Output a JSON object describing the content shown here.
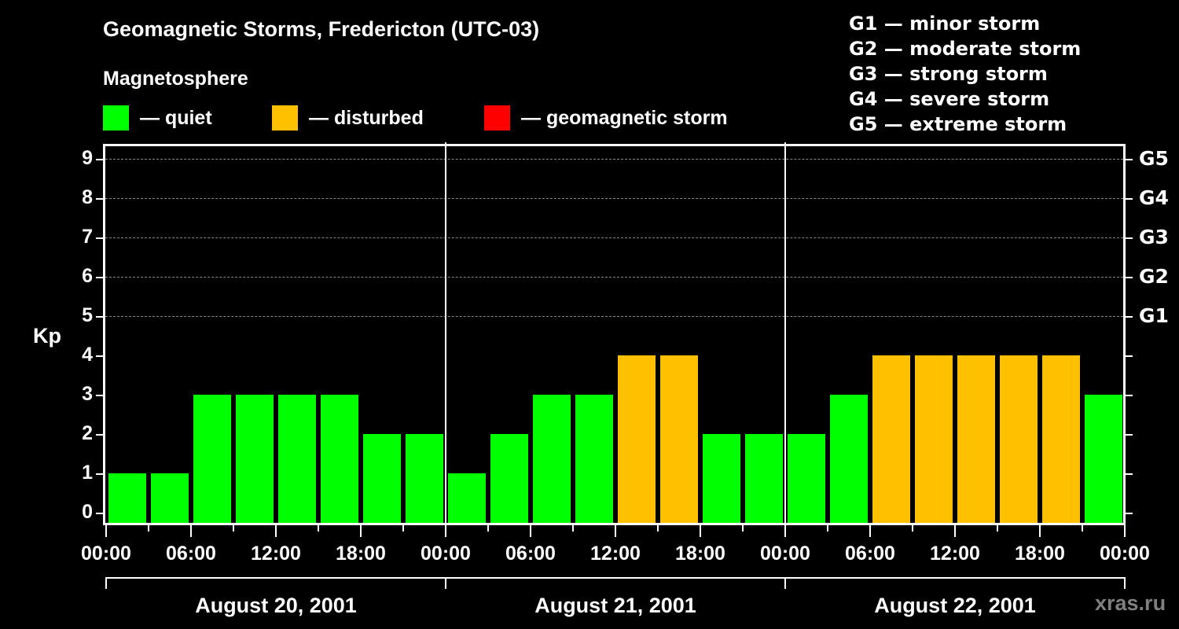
{
  "header": {
    "title": "Geomagnetic Storms, Fredericton (UTC-03)",
    "subtitle": "Magnetosphere"
  },
  "legend": [
    {
      "label": "— quiet",
      "color": "#00ff00"
    },
    {
      "label": "— disturbed",
      "color": "#ffc000"
    },
    {
      "label": "— geomagnetic storm",
      "color": "#ff0000"
    }
  ],
  "g_scale": [
    "G1 — minor storm",
    "G2 — moderate storm",
    "G3 — strong storm",
    "G4 — severe storm",
    "G5 — extreme storm"
  ],
  "axis": {
    "ylabel": "Kp",
    "yticks": [
      "0",
      "1",
      "2",
      "3",
      "4",
      "5",
      "6",
      "7",
      "8",
      "9"
    ],
    "right_labels": [
      {
        "kp": 5,
        "label": "G1"
      },
      {
        "kp": 6,
        "label": "G2"
      },
      {
        "kp": 7,
        "label": "G3"
      },
      {
        "kp": 8,
        "label": "G4"
      },
      {
        "kp": 9,
        "label": "G5"
      }
    ],
    "xticks": [
      "00:00",
      "06:00",
      "12:00",
      "18:00",
      "00:00",
      "06:00",
      "12:00",
      "18:00",
      "00:00",
      "06:00",
      "12:00",
      "18:00",
      "00:00"
    ],
    "days": [
      "August 20, 2001",
      "August 21, 2001",
      "August 22, 2001"
    ]
  },
  "brand": "xras.ru",
  "chart_data": {
    "type": "bar",
    "title": "Geomagnetic Storms, Fredericton (UTC-03)",
    "subtitle": "Magnetosphere",
    "xlabel": "",
    "ylabel": "Kp",
    "ylim": [
      0,
      9
    ],
    "grid": "horizontal dashed at Kp 5-9",
    "legend_position": "top",
    "interval_hours": 3,
    "categories": [
      "Aug 20 00:00",
      "Aug 20 03:00",
      "Aug 20 06:00",
      "Aug 20 09:00",
      "Aug 20 12:00",
      "Aug 20 15:00",
      "Aug 20 18:00",
      "Aug 20 21:00",
      "Aug 21 00:00",
      "Aug 21 03:00",
      "Aug 21 06:00",
      "Aug 21 09:00",
      "Aug 21 12:00",
      "Aug 21 15:00",
      "Aug 21 18:00",
      "Aug 21 21:00",
      "Aug 22 00:00",
      "Aug 22 03:00",
      "Aug 22 06:00",
      "Aug 22 09:00",
      "Aug 22 12:00",
      "Aug 22 15:00",
      "Aug 22 18:00",
      "Aug 22 21:00"
    ],
    "values": [
      1,
      1,
      3,
      3,
      3,
      3,
      2,
      2,
      1,
      2,
      3,
      3,
      4,
      4,
      2,
      2,
      2,
      3,
      4,
      4,
      4,
      4,
      4,
      3
    ],
    "status": [
      "quiet",
      "quiet",
      "quiet",
      "quiet",
      "quiet",
      "quiet",
      "quiet",
      "quiet",
      "quiet",
      "quiet",
      "quiet",
      "quiet",
      "disturbed",
      "disturbed",
      "quiet",
      "quiet",
      "quiet",
      "quiet",
      "disturbed",
      "disturbed",
      "disturbed",
      "disturbed",
      "disturbed",
      "quiet"
    ],
    "colors": {
      "quiet": "#00ff00",
      "disturbed": "#ffc000",
      "storm": "#ff0000"
    },
    "right_axis": {
      "5": "G1",
      "6": "G2",
      "7": "G3",
      "8": "G4",
      "9": "G5"
    }
  }
}
